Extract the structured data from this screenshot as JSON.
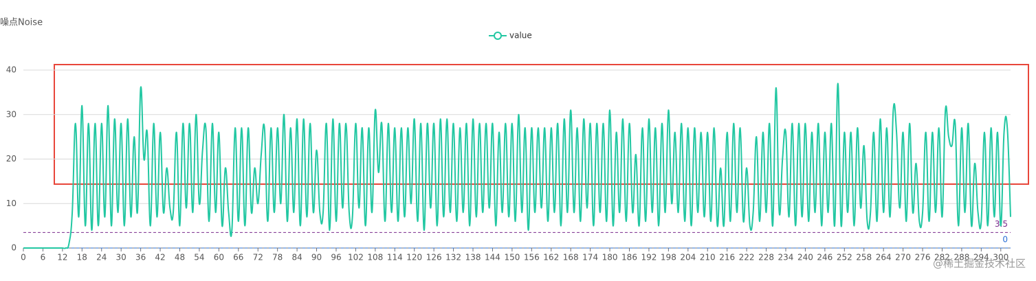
{
  "chart_data": {
    "type": "line",
    "y_axis_title": "噪点Noise",
    "watermark": "@稀土掘金技术社区",
    "categories": [
      "0",
      null,
      null,
      null,
      null,
      null,
      "6",
      null,
      null,
      null,
      null,
      null,
      "12",
      null,
      null,
      null,
      null,
      null,
      "18",
      null,
      null,
      null,
      null,
      null,
      "24",
      null,
      null,
      null,
      null,
      null,
      "30",
      null,
      null,
      null,
      null,
      null,
      "36",
      null,
      null,
      null,
      null,
      null,
      "42",
      null,
      null,
      null,
      null,
      null,
      "48",
      null,
      null,
      null,
      null,
      null,
      "54",
      null,
      null,
      null,
      null,
      null,
      "60",
      null,
      null,
      null,
      null,
      null,
      "66",
      null,
      null,
      null,
      null,
      null,
      "72",
      null,
      null,
      null,
      null,
      null,
      "78",
      null,
      null,
      null,
      null,
      null,
      "84",
      null,
      null,
      null,
      null,
      null,
      "90",
      null,
      null,
      null,
      null,
      null,
      "96",
      null,
      null,
      null,
      null,
      null,
      "102",
      null,
      null,
      null,
      null,
      null,
      "108",
      null,
      null,
      null,
      null,
      null,
      "114",
      null,
      null,
      null,
      null,
      null,
      "120",
      null,
      null,
      null,
      null,
      null,
      "126",
      null,
      null,
      null,
      null,
      null,
      "132",
      null,
      null,
      null,
      null,
      null,
      "138",
      null,
      null,
      null,
      null,
      null,
      "144",
      null,
      null,
      null,
      null,
      null,
      "150",
      null,
      null,
      null,
      null,
      null,
      "156",
      null,
      null,
      null,
      null,
      null,
      "162",
      null,
      null,
      null,
      null,
      null,
      "168",
      null,
      null,
      null,
      null,
      null,
      "174",
      null,
      null,
      null,
      null,
      null,
      "180",
      null,
      null,
      null,
      null,
      null,
      "186",
      null,
      null,
      null,
      null,
      null,
      "192",
      null,
      null,
      null,
      null,
      null,
      "198",
      null,
      null,
      null,
      null,
      null,
      "204",
      null,
      null,
      null,
      null,
      null,
      "210",
      null,
      null,
      null,
      null,
      null,
      "216",
      null,
      null,
      null,
      null,
      null,
      "222",
      null,
      null,
      null,
      null,
      null,
      "228",
      null,
      null,
      null,
      null,
      null,
      "234",
      null,
      null,
      null,
      null,
      null,
      "240",
      null,
      null,
      null,
      null,
      null,
      "246",
      null,
      null,
      null,
      null,
      null,
      "252",
      null,
      null,
      null,
      null,
      null,
      "258",
      null,
      null,
      null,
      null,
      null,
      "264",
      null,
      null,
      null,
      null,
      null,
      "270",
      null,
      null,
      null,
      null,
      null,
      "276",
      null,
      null,
      null,
      null,
      null,
      "282",
      null,
      null,
      null,
      null,
      null,
      "288",
      null,
      null,
      null,
      null,
      null,
      "294",
      null,
      null,
      null,
      null,
      null,
      "300",
      null,
      null,
      null
    ],
    "series": [
      {
        "name": "value",
        "color": "#22c7a2",
        "values": [
          0,
          0,
          0,
          0,
          0,
          0,
          0,
          0,
          0,
          0,
          0,
          0,
          0,
          0,
          1,
          8,
          28,
          7,
          32,
          5,
          28,
          4,
          28,
          5,
          28,
          7,
          32,
          5,
          29,
          8,
          28,
          5,
          29,
          7,
          25,
          8,
          36,
          20,
          26,
          5,
          28,
          7,
          26,
          8,
          18,
          9,
          8,
          26,
          5,
          28,
          9,
          28,
          8,
          30,
          10,
          22,
          27,
          6,
          28,
          8,
          26,
          5,
          18,
          8,
          4,
          27,
          6,
          27,
          5,
          27,
          8,
          18,
          10,
          21,
          27,
          6,
          27,
          8,
          27,
          10,
          30,
          6,
          27,
          8,
          29,
          5,
          29,
          7,
          28,
          8,
          22,
          8,
          8,
          28,
          4,
          29,
          6,
          28,
          9,
          28,
          8,
          7,
          28,
          9,
          27,
          5,
          27,
          8,
          31,
          17,
          28,
          6,
          28,
          8,
          27,
          6,
          27,
          7,
          27,
          10,
          29,
          6,
          28,
          4,
          28,
          9,
          28,
          5,
          29,
          7,
          29,
          8,
          28,
          6,
          27,
          8,
          28,
          5,
          29,
          7,
          28,
          8,
          28,
          9,
          28,
          5,
          26,
          8,
          28,
          7,
          28,
          6,
          30,
          8,
          27,
          4,
          27,
          8,
          27,
          9,
          27,
          6,
          27,
          8,
          28,
          5,
          29,
          8,
          31,
          8,
          27,
          6,
          29,
          9,
          28,
          5,
          28,
          8,
          28,
          6,
          31,
          5,
          26,
          8,
          29,
          6,
          28,
          8,
          21,
          5,
          27,
          6,
          29,
          8,
          27,
          5,
          28,
          8,
          31,
          10,
          26,
          8,
          28,
          6,
          27,
          5,
          27,
          8,
          26,
          7,
          26,
          6,
          27,
          5,
          18,
          5,
          26,
          6,
          28,
          8,
          27,
          6,
          18,
          5,
          8,
          25,
          6,
          26,
          8,
          28,
          5,
          36,
          8,
          20,
          26,
          7,
          28,
          5,
          28,
          7,
          28,
          6,
          26,
          8,
          28,
          5,
          26,
          8,
          28,
          5,
          37,
          5,
          26,
          8,
          26,
          5,
          27,
          9,
          23,
          6,
          8,
          26,
          6,
          29,
          8,
          27,
          7,
          31,
          26,
          9,
          26,
          6,
          28,
          8,
          19,
          6,
          8,
          26,
          6,
          26,
          8,
          27,
          7,
          31,
          25,
          23,
          28,
          5,
          27,
          8,
          28,
          5,
          19,
          8,
          6,
          26,
          5,
          27,
          7,
          26,
          5,
          26,
          27,
          7
        ]
      }
    ],
    "mark_lines": [
      {
        "value": 3.5,
        "color": "#7a2a8c"
      },
      {
        "value": 0,
        "color": "#2a6fd6"
      }
    ],
    "ylim": [
      0,
      40
    ],
    "yticks": [
      0,
      10,
      20,
      30,
      40
    ],
    "grid": true
  }
}
